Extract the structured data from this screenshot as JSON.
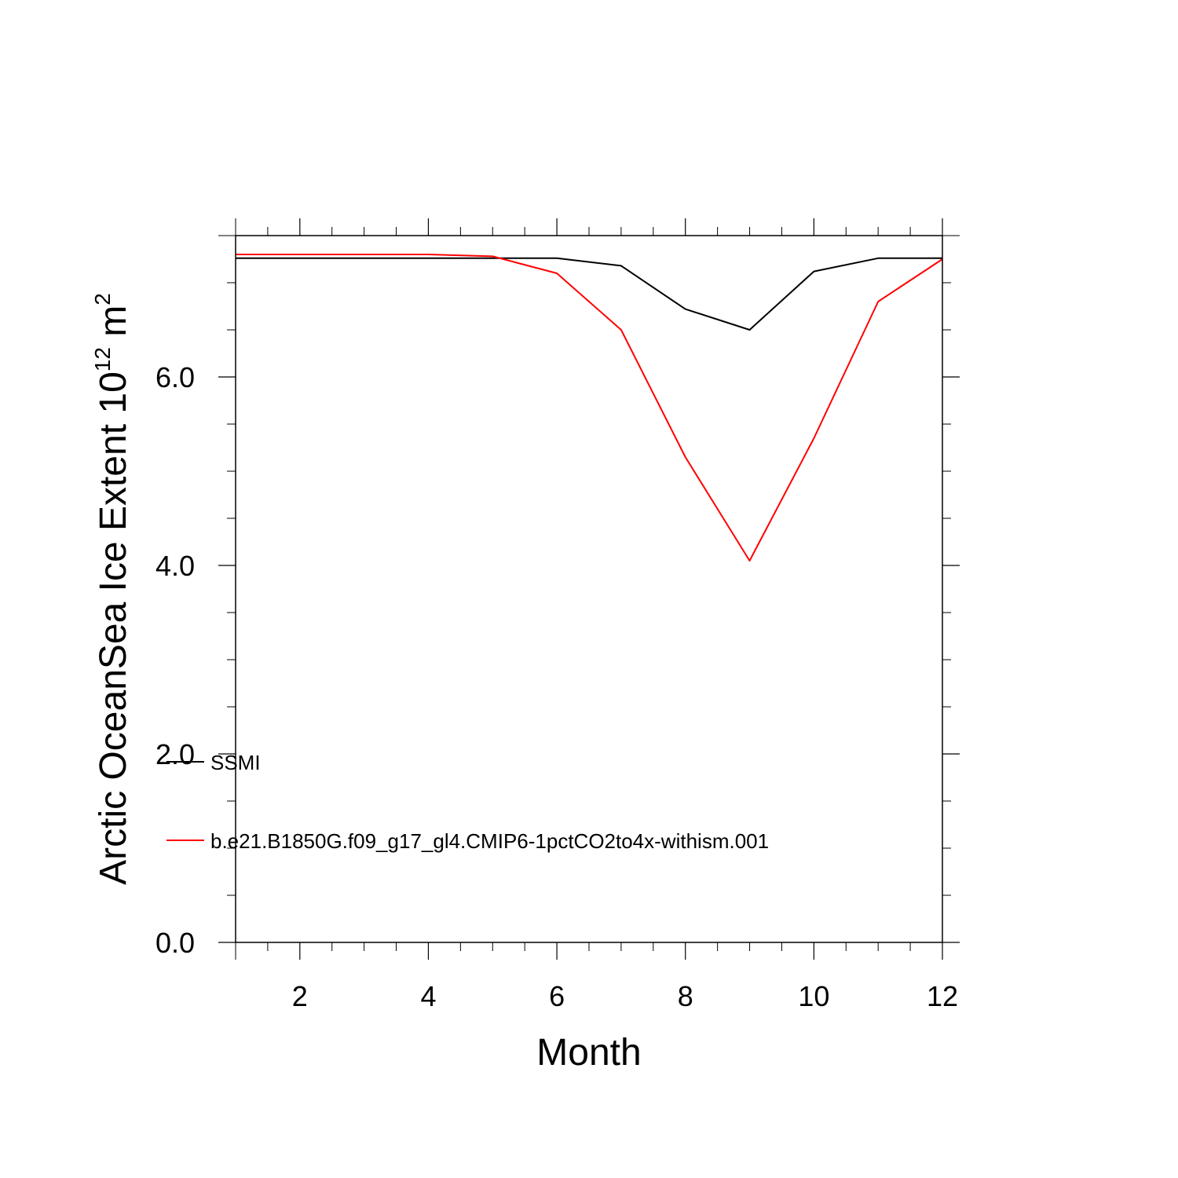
{
  "chart_data": {
    "type": "line",
    "xlabel": "Month",
    "ylabel": "Arctic OceanSea Ice Extent 10",
    "ylabel_exponent": "12",
    "ylabel_unit": " m",
    "ylabel_unit_exponent": "2",
    "xlim": [
      1,
      12
    ],
    "ylim": [
      0,
      7.5
    ],
    "x_ticks": [
      2,
      4,
      6,
      8,
      10,
      12
    ],
    "x_tick_labels": [
      "2",
      "4",
      "6",
      "8",
      "10",
      "12"
    ],
    "y_ticks": [
      0,
      2,
      4,
      6
    ],
    "y_tick_labels": [
      "0.0",
      "2.0",
      "4.0",
      "6.0"
    ],
    "x_minor_step": 0.5,
    "y_minor_step": 0.5,
    "grid": false,
    "legend_position": "bottom-left",
    "series": [
      {
        "name": "SSMI",
        "color": "#000000",
        "x": [
          1,
          2,
          3,
          4,
          5,
          6,
          7,
          8,
          9,
          10,
          11,
          12
        ],
        "values": [
          7.26,
          7.26,
          7.26,
          7.26,
          7.26,
          7.26,
          7.18,
          6.72,
          6.5,
          7.12,
          7.26,
          7.26
        ]
      },
      {
        "name": "b.e21.B1850G.f09_g17_gl4.CMIP6-1pctCO2to4x-withism.001",
        "color": "#ff0000",
        "x": [
          1,
          2,
          3,
          4,
          5,
          6,
          7,
          8,
          9,
          10,
          11,
          12
        ],
        "values": [
          7.3,
          7.3,
          7.3,
          7.3,
          7.28,
          7.1,
          6.5,
          5.15,
          4.05,
          5.35,
          6.8,
          7.25
        ]
      }
    ]
  }
}
